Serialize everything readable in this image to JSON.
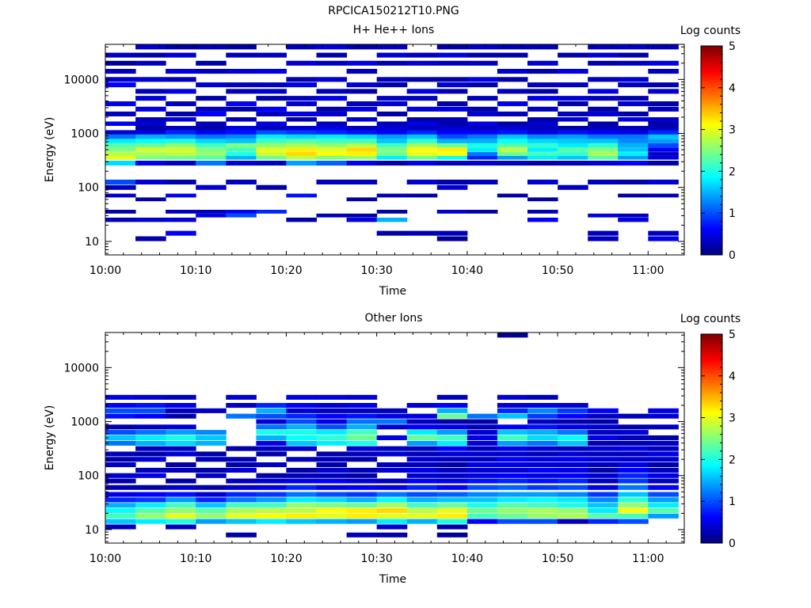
{
  "figure": {
    "title": "RPCICA150212T10.PNG"
  },
  "colorscale": {
    "stops": [
      "#00007f",
      "#0000ff",
      "#007fff",
      "#00ffff",
      "#7fff7f",
      "#ffff00",
      "#ff7f00",
      "#ff0000",
      "#7f0000"
    ]
  },
  "chart_data": [
    {
      "type": "heatmap",
      "title": "H+ He++ Ions",
      "xlabel": "Time",
      "ylabel": "Energy (eV)",
      "xticks": [
        "10:00",
        "10:10",
        "10:20",
        "10:30",
        "10:40",
        "10:50",
        "11:00"
      ],
      "yticks": [
        "10",
        "100",
        "1000",
        "10000"
      ],
      "xlim_minutes": [
        0,
        64
      ],
      "ylim_log10": [
        0.75,
        4.65
      ],
      "colorbar": {
        "label": "Log counts",
        "ticks": [
          "0",
          "1",
          "2",
          "3",
          "4",
          "5"
        ],
        "range": [
          0,
          5
        ]
      },
      "time_bins": [
        "10:00",
        "10:03",
        "10:07",
        "10:10",
        "10:13",
        "10:17",
        "10:20",
        "10:23",
        "10:27",
        "10:30",
        "10:33",
        "10:37",
        "10:40",
        "10:43",
        "10:47",
        "10:50",
        "10:53",
        "10:57",
        "11:00"
      ],
      "log_energy_centers": [
        1.05,
        1.15,
        1.4,
        1.48,
        1.55,
        1.78,
        1.85,
        2.0,
        2.1,
        2.45,
        2.55,
        2.62,
        2.7,
        2.78,
        2.86,
        2.94,
        3.02,
        3.1,
        3.18,
        3.26,
        3.36,
        3.45,
        3.55,
        3.65,
        3.78,
        3.9,
        4.0,
        4.15,
        4.3,
        4.45,
        4.6
      ],
      "log_counts": [
        [
          -1,
          -1,
          0.3,
          -1,
          0.2,
          -1,
          0.4,
          0.3,
          1.0,
          1.7,
          3.0,
          2.8,
          2.5,
          2.3,
          1.8,
          1.2,
          0.4,
          -1,
          0.6,
          -1,
          0.3,
          -1,
          0.5,
          -1,
          -1,
          0.6,
          0.4,
          0.3,
          0.1,
          0.3,
          -1
        ],
        [
          0.2,
          -1,
          0.4,
          -1,
          -1,
          0.2,
          -1,
          -1,
          0.4,
          0.5,
          2.5,
          2.7,
          2.9,
          2.4,
          1.9,
          1.5,
          0.5,
          0.2,
          0.4,
          0.3,
          -1,
          0.5,
          -1,
          0.4,
          0.3,
          -1,
          0.4,
          -1,
          0.3,
          0.2,
          0.4
        ],
        [
          -1,
          0.6,
          0.4,
          -1,
          0.3,
          -1,
          0.6,
          -1,
          0.2,
          0.3,
          2.4,
          2.8,
          2.9,
          2.6,
          2.0,
          1.4,
          0.8,
          0.3,
          -1,
          0.4,
          0.2,
          -1,
          0.3,
          -1,
          0.5,
          -1,
          0.3,
          0.5,
          -1,
          0.4,
          0.2
        ],
        [
          -1,
          -1,
          -1,
          0.5,
          0.3,
          -1,
          -1,
          0.4,
          -1,
          1.2,
          2.3,
          2.6,
          2.5,
          2.2,
          1.7,
          1.2,
          0.6,
          0.2,
          0.3,
          -1,
          0.6,
          0.3,
          -1,
          0.2,
          -1,
          0.4,
          -1,
          0.3,
          0.2,
          -1,
          0.3
        ],
        [
          -1,
          -1,
          -1,
          1.0,
          0.6,
          -1,
          -1,
          -1,
          0.3,
          0.4,
          1.5,
          2.0,
          2.2,
          2.5,
          1.6,
          1.3,
          0.7,
          0.5,
          -1,
          0.3,
          -1,
          0.2,
          0.6,
          -1,
          0.3,
          0.3,
          -1,
          0.4,
          -1,
          0.3,
          0.2
        ],
        [
          -1,
          -1,
          -1,
          -1,
          0.8,
          -1,
          -1,
          0.2,
          -1,
          0.3,
          2.4,
          2.9,
          3.0,
          2.6,
          2.2,
          1.8,
          1.0,
          0.3,
          0.5,
          -1,
          0.3,
          0.6,
          -1,
          0.2,
          0.4,
          0.3,
          -1,
          0.5,
          -1,
          0.3,
          -1
        ],
        [
          -1,
          -1,
          0.2,
          -1,
          -1,
          -1,
          0.7,
          -1,
          -1,
          1.4,
          2.8,
          3.3,
          3.2,
          2.7,
          2.3,
          1.7,
          0.9,
          0.4,
          -1,
          0.2,
          0.5,
          -1,
          0.4,
          0.3,
          -1,
          0.5,
          0.2,
          -1,
          0.4,
          -1,
          0.3
        ],
        [
          -1,
          -1,
          -1,
          0.3,
          -1,
          -1,
          -1,
          -1,
          0.3,
          1.1,
          2.5,
          3.1,
          3.0,
          2.6,
          2.2,
          1.8,
          0.8,
          0.5,
          0.3,
          -1,
          0.4,
          0.2,
          -1,
          0.5,
          0.3,
          -1,
          0.4,
          -1,
          0.3,
          0.2,
          0.5
        ],
        [
          -1,
          -1,
          0.5,
          0.2,
          -1,
          0.2,
          -1,
          -1,
          0.3,
          0.5,
          2.6,
          3.2,
          3.3,
          2.8,
          2.2,
          1.7,
          0.7,
          0.3,
          -1,
          0.4,
          -1,
          0.5,
          0.3,
          -1,
          0.2,
          0.4,
          -1,
          0.3,
          0.5,
          -1,
          0.2
        ],
        [
          -1,
          0.2,
          1.5,
          -1,
          0.2,
          -1,
          0.3,
          -1,
          -1,
          0.2,
          1.8,
          2.4,
          2.5,
          2.2,
          1.6,
          1.4,
          0.6,
          0.4,
          0.3,
          -1,
          0.2,
          -1,
          0.4,
          0.3,
          -1,
          0.2,
          0.3,
          -1,
          0.2,
          0.4,
          0.3
        ],
        [
          -1,
          0.3,
          -1,
          -1,
          -1,
          -1,
          0.2,
          -1,
          0.4,
          0.5,
          2.4,
          3.0,
          3.1,
          2.7,
          2.1,
          1.6,
          0.8,
          0.3,
          0.5,
          0.2,
          -1,
          0.4,
          -1,
          0.3,
          0.5,
          -1,
          0.2,
          -1,
          0.4,
          0.3,
          -1
        ],
        [
          0.1,
          0.3,
          -1,
          -1,
          0.4,
          -1,
          -1,
          0.4,
          0.2,
          0.3,
          1.9,
          3.1,
          3.2,
          2.4,
          1.5,
          1.0,
          0.6,
          0.4,
          0.2,
          0.3,
          -1,
          0.5,
          0.2,
          -1,
          0.3,
          0.4,
          0.2,
          -1,
          0.3,
          0.5,
          0.2
        ],
        [
          -1,
          -1,
          -1,
          -1,
          0.2,
          -1,
          -1,
          -1,
          0.3,
          0.4,
          0.8,
          1.2,
          1.8,
          2.0,
          1.5,
          1.2,
          0.6,
          0.3,
          0.5,
          -1,
          0.4,
          0.2,
          -1,
          0.3,
          -1,
          0.2,
          0.5,
          -1,
          0.3,
          0.2,
          0.4
        ],
        [
          -1,
          -1,
          -1,
          -1,
          -1,
          -1,
          0.2,
          -1,
          -1,
          0.3,
          1.4,
          2.4,
          2.8,
          2.3,
          1.9,
          1.6,
          0.7,
          0.4,
          0.2,
          -1,
          0.3,
          -1,
          0.5,
          -1,
          0.3,
          -1,
          0.2,
          0.4,
          -1,
          0.2,
          0.3
        ],
        [
          -1,
          -1,
          0.6,
          -1,
          0.3,
          0.2,
          -1,
          -1,
          0.4,
          0.2,
          1.8,
          2.2,
          1.8,
          2.1,
          1.7,
          1.3,
          0.5,
          0.3,
          0.4,
          0.2,
          -1,
          0.3,
          -1,
          0.5,
          0.2,
          0.3,
          -1,
          0.2,
          0.4,
          -1,
          0.3
        ],
        [
          -1,
          -1,
          -1,
          -1,
          -1,
          -1,
          -1,
          0.3,
          -1,
          0.3,
          1.6,
          2.1,
          2.3,
          1.8,
          1.6,
          1.4,
          0.7,
          0.2,
          -1,
          0.4,
          0.3,
          -1,
          0.2,
          0.4,
          -1,
          0.3,
          -1,
          0.5,
          -1,
          0.2,
          -1
        ],
        [
          0.3,
          0.3,
          -1,
          0.5,
          -1,
          -1,
          -1,
          -1,
          0.3,
          0.4,
          2.3,
          2.7,
          2.5,
          2.1,
          1.6,
          1.2,
          0.6,
          0.3,
          0.2,
          -1,
          0.4,
          0.2,
          -1,
          0.3,
          0.5,
          -1,
          0.3,
          -1,
          0.2,
          0.4,
          0.3
        ],
        [
          -1,
          -1,
          0.5,
          0.3,
          -1,
          -1,
          0.2,
          -1,
          0.2,
          0.6,
          1.4,
          1.8,
          1.6,
          1.5,
          1.3,
          1.2,
          0.5,
          0.3,
          -1,
          0.5,
          0.2,
          -1,
          0.4,
          0.2,
          -1,
          0.3,
          0.4,
          -1,
          0.3,
          0.2,
          0.4
        ],
        [
          0.5,
          0.3,
          -1,
          -1,
          -1,
          -1,
          0.3,
          -1,
          0.4,
          0.2,
          0.5,
          0.3,
          0.6,
          1.0,
          1.4,
          1.6,
          0.8,
          0.3,
          0.2,
          0.4,
          -1,
          0.3,
          0.2,
          -1,
          0.4,
          0.2,
          -1,
          0.3,
          0.5,
          -1,
          0.3
        ]
      ]
    },
    {
      "type": "heatmap",
      "title": "Other Ions",
      "xlabel": "Time",
      "ylabel": "Energy (eV)",
      "xticks": [
        "10:00",
        "10:10",
        "10:20",
        "10:30",
        "10:40",
        "10:50",
        "11:00"
      ],
      "yticks": [
        "10",
        "100",
        "1000",
        "10000"
      ],
      "xlim_minutes": [
        0,
        64
      ],
      "ylim_log10": [
        0.75,
        4.65
      ],
      "colorbar": {
        "label": "Log counts",
        "ticks": [
          "0",
          "1",
          "2",
          "3",
          "4",
          "5"
        ],
        "range": [
          0,
          5
        ]
      },
      "time_bins": [
        "10:00",
        "10:03",
        "10:07",
        "10:10",
        "10:13",
        "10:17",
        "10:20",
        "10:23",
        "10:27",
        "10:30",
        "10:33",
        "10:37",
        "10:40",
        "10:43",
        "10:47",
        "10:50",
        "10:53",
        "10:57",
        "11:00"
      ],
      "log_energy_centers": [
        0.9,
        1.05,
        1.15,
        1.25,
        1.35,
        1.45,
        1.55,
        1.65,
        1.78,
        1.9,
        2.0,
        2.1,
        2.2,
        2.3,
        2.4,
        2.5,
        2.6,
        2.7,
        2.8,
        2.9,
        3.0,
        3.1,
        3.2,
        3.3,
        3.45,
        4.6
      ],
      "log_counts": [
        [
          -1,
          0.3,
          1.6,
          2.2,
          1.9,
          1.5,
          0.8,
          0.5,
          0.3,
          0.2,
          0.4,
          -1,
          0.3,
          0.2,
          0.3,
          -1,
          1.2,
          1.6,
          1.0,
          0.2,
          -1,
          0.7,
          1.0,
          0.6,
          0.5,
          -1
        ],
        [
          -1,
          -1,
          1.8,
          2.6,
          2.3,
          1.8,
          0.9,
          0.6,
          0.2,
          -1,
          0.5,
          0.3,
          -1,
          0.4,
          0.2,
          0.3,
          1.5,
          1.8,
          1.2,
          0.3,
          -1,
          0.6,
          1.0,
          0.7,
          0.4,
          -1
        ],
        [
          -1,
          0.3,
          2.0,
          3.0,
          2.6,
          2.2,
          1.4,
          0.7,
          0.4,
          0.2,
          -1,
          0.3,
          0.2,
          -1,
          0.4,
          0.3,
          1.7,
          2.0,
          1.4,
          0.4,
          -1,
          0.2,
          0.3,
          0.5,
          0.3,
          -1
        ],
        [
          -1,
          -1,
          1.4,
          2.6,
          2.3,
          1.6,
          0.8,
          0.4,
          0.2,
          -1,
          0.3,
          0.2,
          -1,
          0.3,
          0.2,
          -1,
          1.5,
          1.6,
          1.3,
          -1,
          -1,
          -1,
          0.3,
          -1,
          -1,
          -1
        ],
        [
          0.2,
          -1,
          1.6,
          3.0,
          2.7,
          2.2,
          1.2,
          0.8,
          0.4,
          0.3,
          -1,
          0.4,
          0.2,
          0.3,
          -1,
          0.2,
          -1,
          -1,
          -1,
          -1,
          -1,
          1.2,
          -1,
          0.3,
          0.4,
          -1
        ],
        [
          -1,
          -1,
          1.8,
          3.1,
          2.8,
          2.2,
          1.4,
          0.9,
          0.5,
          0.4,
          0.2,
          -1,
          0.3,
          -1,
          0.2,
          0.3,
          0.5,
          1.5,
          2.0,
          1.2,
          0.4,
          1.0,
          1.5,
          0.8,
          -1,
          -1
        ],
        [
          -1,
          -1,
          1.6,
          3.2,
          2.8,
          2.6,
          1.8,
          1.2,
          0.8,
          0.5,
          0.3,
          0.2,
          -1,
          0.3,
          -1,
          0.4,
          1.6,
          1.9,
          2.0,
          1.5,
          1.0,
          0.8,
          0.4,
          0.6,
          0.5,
          -1
        ],
        [
          -1,
          -1,
          1.5,
          3.0,
          3.1,
          2.5,
          1.7,
          1.0,
          0.5,
          0.6,
          0.3,
          0.4,
          0.2,
          0.3,
          0.2,
          -1,
          1.8,
          2.1,
          1.8,
          1.0,
          0.5,
          0.6,
          0.3,
          0.4,
          0.5,
          -1
        ],
        [
          0.3,
          -1,
          1.4,
          3.2,
          3.2,
          2.4,
          1.5,
          0.9,
          0.6,
          0.4,
          0.2,
          0.3,
          -1,
          0.2,
          0.3,
          0.4,
          2.0,
          2.4,
          2.2,
          1.5,
          1.2,
          0.7,
          0.3,
          0.5,
          0.4,
          -1
        ],
        [
          0.2,
          0.4,
          1.8,
          3.0,
          3.3,
          2.7,
          1.9,
          1.2,
          0.5,
          0.3,
          -1,
          0.4,
          0.3,
          -1,
          0.4,
          0.3,
          -1,
          0.5,
          -1,
          0.4,
          1.2,
          0.5,
          0.3,
          -1,
          -1,
          -1
        ],
        [
          -1,
          -1,
          1.5,
          3.0,
          2.8,
          2.2,
          1.5,
          1.0,
          0.8,
          0.6,
          0.4,
          0.5,
          0.3,
          0.4,
          0.3,
          0.3,
          1.4,
          2.4,
          1.8,
          0.6,
          0.3,
          0.5,
          -1,
          0.4,
          -1,
          -1
        ],
        [
          0.1,
          0.2,
          2.0,
          3.2,
          3.0,
          2.4,
          1.6,
          1.1,
          0.6,
          0.5,
          0.4,
          0.3,
          0.2,
          0.3,
          0.4,
          0.6,
          1.8,
          2.2,
          1.4,
          0.5,
          0.2,
          2.4,
          1.5,
          0.6,
          0.3,
          -1
        ],
        [
          -1,
          -1,
          0.6,
          2.2,
          2.4,
          2.0,
          1.6,
          1.3,
          1.0,
          0.7,
          0.5,
          0.4,
          0.5,
          0.3,
          0.4,
          0.3,
          0.4,
          0.5,
          0.4,
          0.3,
          0.2,
          1.2,
          -1,
          -1,
          -1,
          -1
        ],
        [
          -1,
          -1,
          1.0,
          2.4,
          2.6,
          2.3,
          1.8,
          1.4,
          1.1,
          0.8,
          0.6,
          0.4,
          0.5,
          0.6,
          0.4,
          0.5,
          1.4,
          2.2,
          1.6,
          0.6,
          -1,
          1.6,
          0.8,
          0.4,
          0.4,
          0.1
        ],
        [
          -1,
          -1,
          1.0,
          2.6,
          2.7,
          2.2,
          1.9,
          1.4,
          0.9,
          0.7,
          0.5,
          0.6,
          0.4,
          0.5,
          0.3,
          0.4,
          1.2,
          1.7,
          1.5,
          0.7,
          0.3,
          0.9,
          1.3,
          0.5,
          0.3,
          -1
        ],
        [
          -1,
          -1,
          0.3,
          2.7,
          2.6,
          2.0,
          1.8,
          1.3,
          1.0,
          0.8,
          0.6,
          0.5,
          0.4,
          0.6,
          0.4,
          0.3,
          1.6,
          1.9,
          1.2,
          0.5,
          0.2,
          0.6,
          0.9,
          0.4,
          -1,
          -1
        ],
        [
          -1,
          -1,
          0.8,
          2.3,
          1.8,
          1.6,
          1.3,
          0.9,
          0.5,
          0.3,
          0.4,
          0.2,
          0.3,
          0.5,
          0.3,
          0.4,
          0.2,
          0.5,
          0.3,
          0.4,
          0.2,
          0.3,
          0.6,
          -1,
          -1,
          -1
        ],
        [
          -1,
          -1,
          1.0,
          2.2,
          3.1,
          2.6,
          2.1,
          1.6,
          1.2,
          0.9,
          0.8,
          0.6,
          0.5,
          0.4,
          0.3,
          0.5,
          0.2,
          0.3,
          0.4,
          0.2,
          -1,
          0.3,
          -1,
          -1,
          -1,
          -1
        ],
        [
          -1,
          -1,
          -1,
          1.4,
          2.3,
          1.8,
          1.4,
          1.0,
          0.6,
          0.3,
          0.5,
          0.3,
          0.2,
          0.4,
          0.5,
          0.3,
          0.3,
          0.2,
          -1,
          0.3,
          -1,
          0.4,
          0.5,
          -1,
          -1,
          -1
        ]
      ]
    }
  ]
}
